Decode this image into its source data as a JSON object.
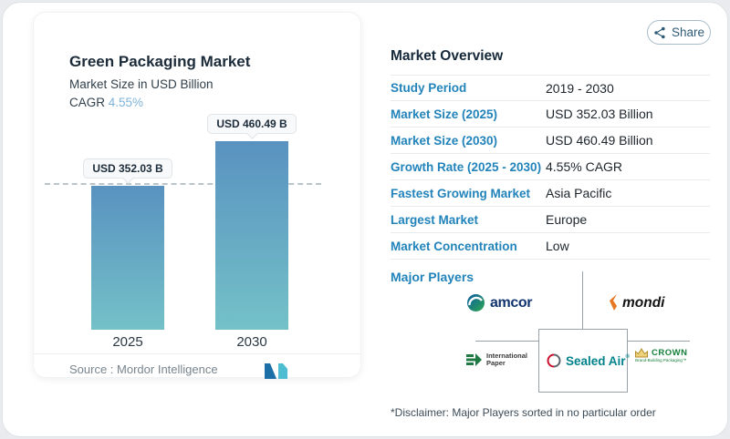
{
  "share_button": {
    "label": "Share"
  },
  "chart": {
    "title": "Green Packaging Market",
    "subtitle": "Market Size in USD Billion",
    "cagr_label": "CAGR",
    "cagr_value": "4.55%",
    "bars": [
      {
        "year": "2025",
        "tag": "USD 352.03 B"
      },
      {
        "year": "2030",
        "tag": "USD 460.49 B"
      }
    ],
    "source_label": "Source :",
    "source_name": "Mordor Intelligence"
  },
  "chart_data": {
    "type": "bar",
    "title": "Green Packaging Market",
    "subtitle": "Market Size in USD Billion",
    "categories": [
      "2025",
      "2030"
    ],
    "values": [
      352.03,
      460.49
    ],
    "unit": "USD Billion",
    "data_labels": [
      "USD 352.03 B",
      "USD 460.49 B"
    ],
    "cagr_percent": 4.55,
    "ylim": [
      0,
      500
    ],
    "grid": false,
    "legend": false,
    "reference_line": {
      "style": "dashed",
      "at_value": 352.03
    },
    "bar_gradient": [
      "#5992c0",
      "#74c1c8"
    ],
    "source": "Mordor Intelligence"
  },
  "overview": {
    "title": "Market Overview",
    "rows": [
      {
        "label": "Study Period",
        "value": "2019 - 2030"
      },
      {
        "label": "Market Size (2025)",
        "value": "USD 352.03 Billion"
      },
      {
        "label": "Market Size (2030)",
        "value": "USD 460.49 Billion"
      },
      {
        "label": "Growth Rate (2025 - 2030)",
        "value": "4.55% CAGR"
      },
      {
        "label": "Fastest Growing Market",
        "value": "Asia Pacific"
      },
      {
        "label": "Largest Market",
        "value": "Europe"
      },
      {
        "label": "Market Concentration",
        "value": "Low"
      }
    ],
    "major_players_label": "Major Players",
    "players": {
      "amcor": {
        "name": "amcor"
      },
      "mondi": {
        "name": "mondi"
      },
      "international_paper": {
        "line1": "International",
        "line2": "Paper"
      },
      "sealed_air": {
        "name": "Sealed Air"
      },
      "crown": {
        "name": "CROWN",
        "tagline": "Brand-Building Packaging™"
      }
    },
    "disclaimer": "*Disclaimer: Major Players sorted in no particular order"
  },
  "colors": {
    "accent_blue": "#2183ba",
    "cagr_blue": "#7db3d8",
    "bar_top": "#5992c0",
    "bar_bottom": "#74c1c8",
    "share_text": "#2d5a74"
  }
}
